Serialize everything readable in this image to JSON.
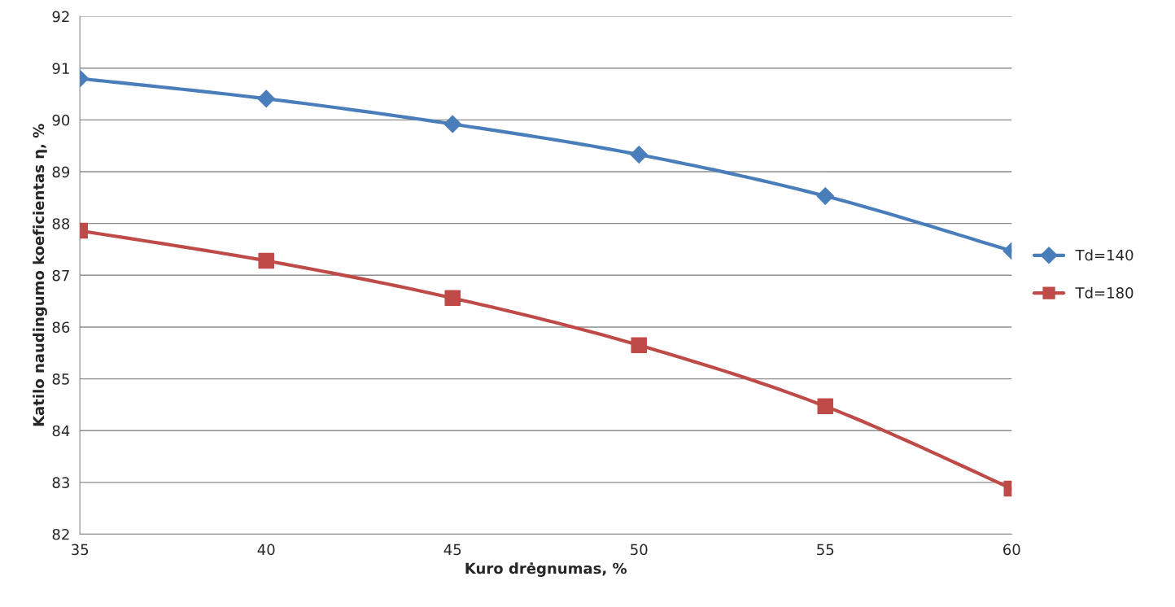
{
  "chart_data": {
    "type": "line",
    "xlabel": "Kuro drėgnumas, %",
    "ylabel": "Katilo naudingumo koeficientas η, %",
    "x": [
      35,
      40,
      45,
      50,
      55,
      60
    ],
    "series": [
      {
        "name": "Td=140",
        "color": "#4a7ebb",
        "marker": "diamond",
        "values": [
          90.8,
          90.41,
          89.92,
          89.33,
          88.53,
          87.47
        ]
      },
      {
        "name": "Td=180",
        "color": "#be4b48",
        "marker": "square",
        "values": [
          87.86,
          87.28,
          86.56,
          85.65,
          84.47,
          82.88
        ]
      }
    ],
    "xlim": [
      35,
      60
    ],
    "xticks": [
      35,
      40,
      45,
      50,
      55,
      60
    ],
    "ylim": [
      82,
      92
    ],
    "yticks": [
      82,
      83,
      84,
      85,
      86,
      87,
      88,
      89,
      90,
      91,
      92
    ],
    "grid": "y",
    "legend": "right",
    "line_style": "solid"
  }
}
